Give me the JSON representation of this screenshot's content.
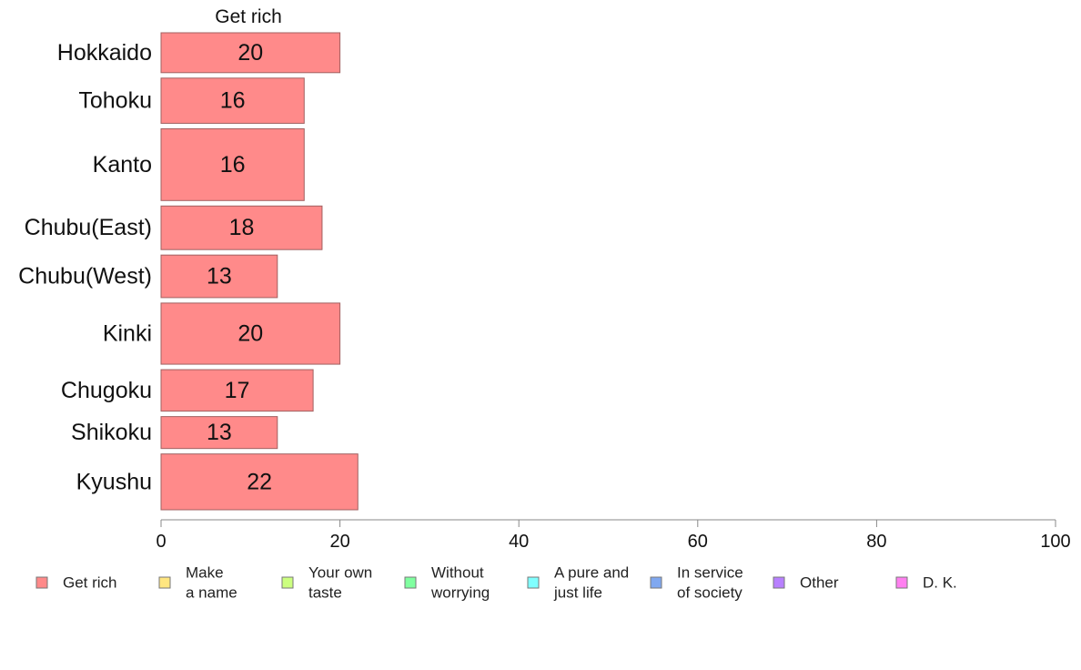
{
  "chart_data": {
    "type": "bar",
    "orientation": "horizontal",
    "title": "Get rich",
    "categories": [
      "Hokkaido",
      "Tohoku",
      "Kanto",
      "Chubu(East)",
      "Chubu(West)",
      "Kinki",
      "Chugoku",
      "Shikoku",
      "Kyushu"
    ],
    "category_weights": [
      0.75,
      0.85,
      1.35,
      0.82,
      0.8,
      1.15,
      0.78,
      0.6,
      1.05
    ],
    "series": [
      {
        "name": "Get rich",
        "values": [
          20,
          16,
          16,
          18,
          13,
          20,
          17,
          13,
          22
        ],
        "data_labels": [
          "20",
          "16",
          "16",
          "18",
          "13",
          "20",
          "17",
          "13",
          "22"
        ]
      }
    ],
    "xlim": [
      0,
      100
    ],
    "xticks": [
      "0",
      "20",
      "40",
      "60",
      "80",
      "100"
    ],
    "grid": false,
    "legend_position": "bottom",
    "legend": [
      {
        "lines": [
          "Get rich"
        ],
        "color": "#ff8a8a"
      },
      {
        "lines": [
          "Make",
          "a name"
        ],
        "color": "#ffe680"
      },
      {
        "lines": [
          "Your own",
          "taste"
        ],
        "color": "#ccff80"
      },
      {
        "lines": [
          "Without",
          "worrying"
        ],
        "color": "#80ffa0"
      },
      {
        "lines": [
          "A pure and",
          "just life"
        ],
        "color": "#80ffff"
      },
      {
        "lines": [
          "In service",
          "of society"
        ],
        "color": "#80a8f0"
      },
      {
        "lines": [
          "Other"
        ],
        "color": "#b880ff"
      },
      {
        "lines": [
          "D. K."
        ],
        "color": "#ff80f0"
      }
    ],
    "bar_color": "#ff8a8a",
    "bar_edge_color": "#a06060",
    "axis_color": "#888888"
  }
}
